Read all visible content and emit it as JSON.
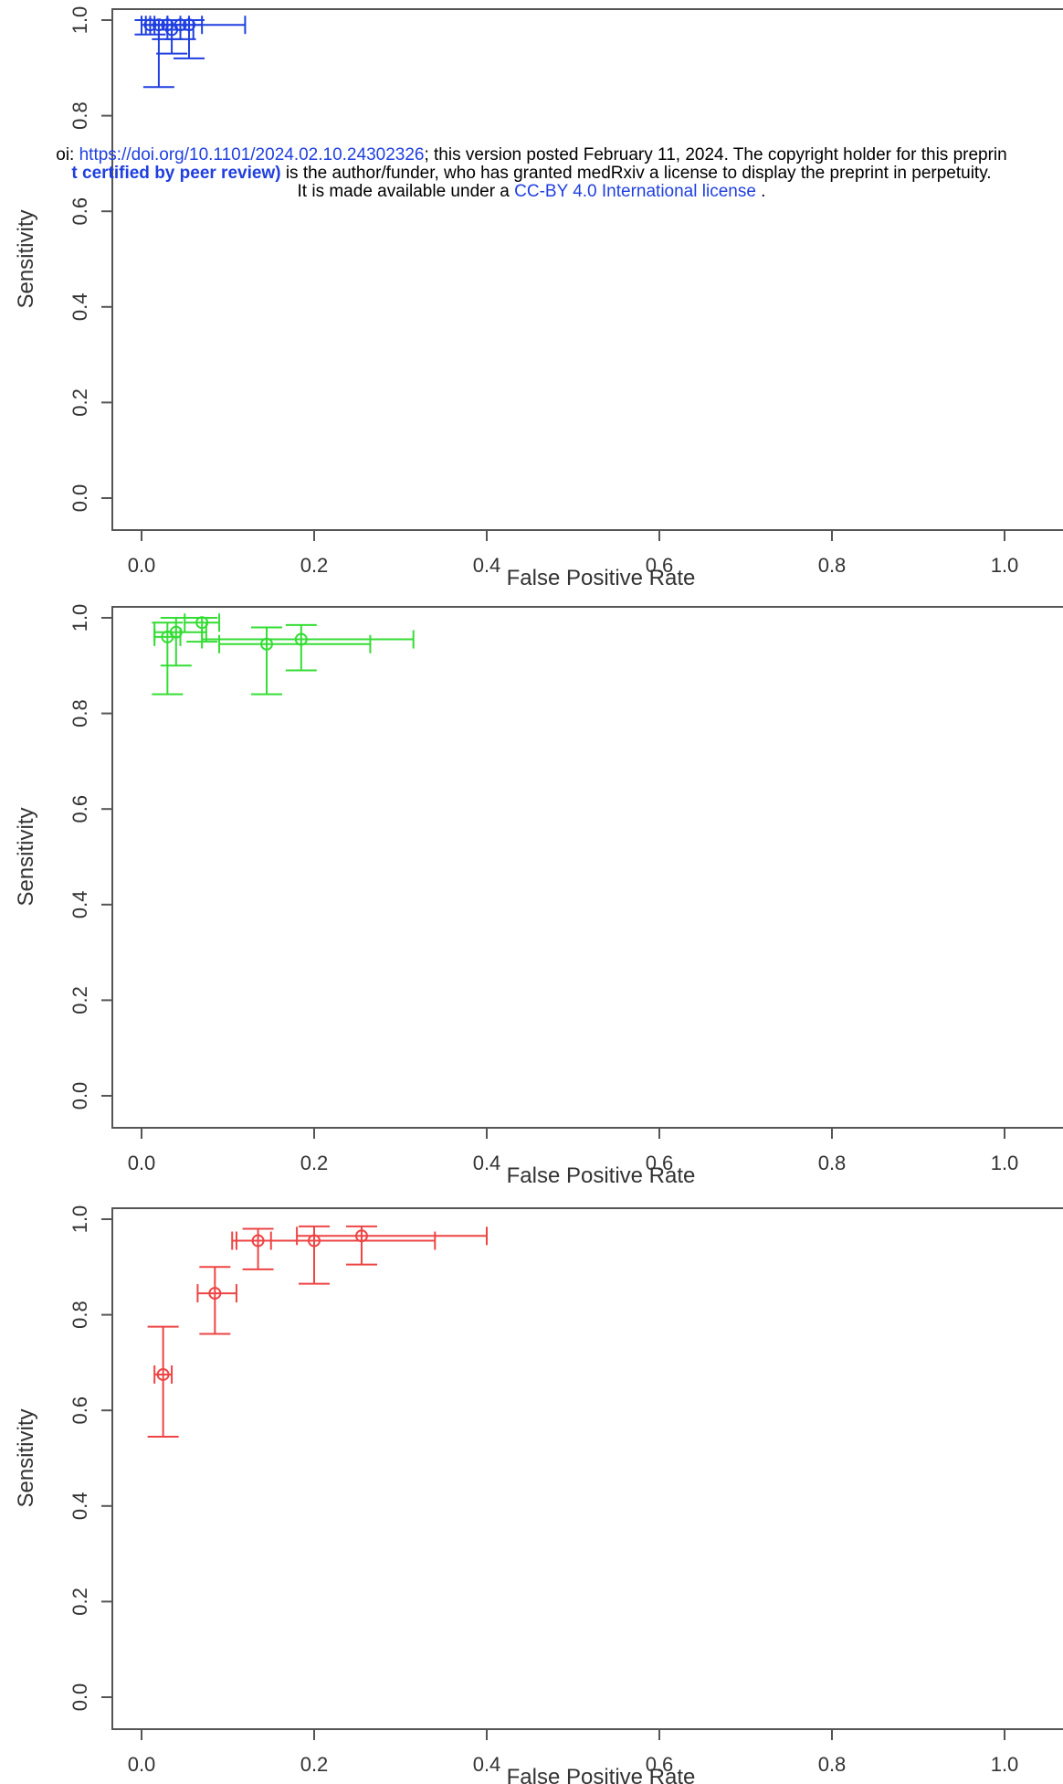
{
  "notice": {
    "line1_prefix": "oi: ",
    "doi_link": "https://doi.org/10.1101/2024.02.10.24302326",
    "line1_suffix": "; this version posted February 11, 2024. The copyright holder for this preprin",
    "line2_bold": "t certified by peer review)",
    "line2_suffix": " is the author/funder, who has granted medRxiv a license to display the preprint in perpetuity.",
    "line3_prefix": "It is made available under a ",
    "license_link": "CC-BY 4.0 International license",
    "line3_suffix": " ."
  },
  "chart_data": [
    {
      "type": "scatter",
      "title": "",
      "xlabel": "False Positive Rate",
      "ylabel": "Sensitivity",
      "xlim": [
        0,
        1
      ],
      "ylim": [
        0,
        1
      ],
      "x_ticks": [
        "0.0",
        "0.2",
        "0.4",
        "0.6",
        "0.8",
        "1.0"
      ],
      "y_ticks": [
        "0.0",
        "0.2",
        "0.4",
        "0.6",
        "0.8",
        "1.0"
      ],
      "color": "#1f3fe0",
      "grid": false,
      "points": [
        {
          "x": 0.01,
          "y": 0.99,
          "x_lo": 0.0,
          "x_hi": 0.03,
          "y_lo": 0.97,
          "y_hi": 1.0
        },
        {
          "x": 0.02,
          "y": 0.99,
          "x_lo": 0.005,
          "x_hi": 0.045,
          "y_lo": 0.86,
          "y_hi": 1.0
        },
        {
          "x": 0.03,
          "y": 0.99,
          "x_lo": 0.015,
          "x_hi": 0.055,
          "y_lo": 0.96,
          "y_hi": 1.0
        },
        {
          "x": 0.035,
          "y": 0.98,
          "x_lo": 0.02,
          "x_hi": 0.06,
          "y_lo": 0.93,
          "y_hi": 1.0
        },
        {
          "x": 0.045,
          "y": 0.99,
          "x_lo": 0.03,
          "x_hi": 0.07,
          "y_lo": 0.96,
          "y_hi": 1.0
        },
        {
          "x": 0.055,
          "y": 0.99,
          "x_lo": 0.01,
          "x_hi": 0.12,
          "y_lo": 0.92,
          "y_hi": 1.0
        }
      ]
    },
    {
      "type": "scatter",
      "title": "",
      "xlabel": "False Positive Rate",
      "ylabel": "Sensitivity",
      "xlim": [
        0,
        1
      ],
      "ylim": [
        0,
        1
      ],
      "x_ticks": [
        "0.0",
        "0.2",
        "0.4",
        "0.6",
        "0.8",
        "1.0"
      ],
      "y_ticks": [
        "0.0",
        "0.2",
        "0.4",
        "0.6",
        "0.8",
        "1.0"
      ],
      "color": "#33dd33",
      "grid": false,
      "points": [
        {
          "x": 0.03,
          "y": 0.96,
          "x_lo": 0.015,
          "x_hi": 0.045,
          "y_lo": 0.84,
          "y_hi": 0.99
        },
        {
          "x": 0.04,
          "y": 0.97,
          "x_lo": 0.015,
          "x_hi": 0.075,
          "y_lo": 0.9,
          "y_hi": 1.0
        },
        {
          "x": 0.07,
          "y": 0.99,
          "x_lo": 0.05,
          "x_hi": 0.09,
          "y_lo": 0.95,
          "y_hi": 1.0
        },
        {
          "x": 0.145,
          "y": 0.945,
          "x_lo": 0.09,
          "x_hi": 0.265,
          "y_lo": 0.84,
          "y_hi": 0.98
        },
        {
          "x": 0.185,
          "y": 0.955,
          "x_lo": 0.07,
          "x_hi": 0.315,
          "y_lo": 0.89,
          "y_hi": 0.985
        }
      ]
    },
    {
      "type": "scatter",
      "title": "",
      "xlabel": "False Positive Rate",
      "ylabel": "Sensitivity",
      "xlim": [
        0,
        1
      ],
      "ylim": [
        0,
        1
      ],
      "x_ticks": [
        "0.0",
        "0.2",
        "0.4",
        "0.6",
        "0.8",
        "1.0"
      ],
      "y_ticks": [
        "0.0",
        "0.2",
        "0.4",
        "0.6",
        "0.8",
        "1.0"
      ],
      "color": "#ee4444",
      "grid": false,
      "points": [
        {
          "x": 0.025,
          "y": 0.675,
          "x_lo": 0.015,
          "x_hi": 0.035,
          "y_lo": 0.545,
          "y_hi": 0.775
        },
        {
          "x": 0.085,
          "y": 0.845,
          "x_lo": 0.065,
          "x_hi": 0.11,
          "y_lo": 0.76,
          "y_hi": 0.9
        },
        {
          "x": 0.135,
          "y": 0.955,
          "x_lo": 0.11,
          "x_hi": 0.15,
          "y_lo": 0.895,
          "y_hi": 0.98
        },
        {
          "x": 0.2,
          "y": 0.955,
          "x_lo": 0.105,
          "x_hi": 0.34,
          "y_lo": 0.865,
          "y_hi": 0.985
        },
        {
          "x": 0.255,
          "y": 0.965,
          "x_lo": 0.18,
          "x_hi": 0.4,
          "y_lo": 0.905,
          "y_hi": 0.985
        }
      ]
    }
  ]
}
